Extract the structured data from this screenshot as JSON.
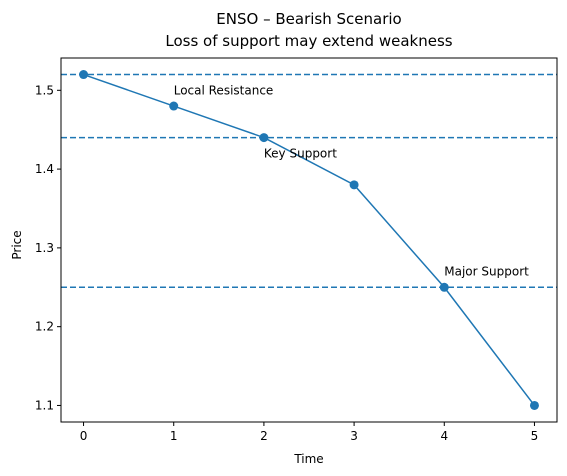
{
  "chart_data": {
    "type": "line",
    "title": "ENSO – Bearish Scenario",
    "subtitle": "Loss of support may extend weakness",
    "xlabel": "Time",
    "ylabel": "Price",
    "xlim": [
      -0.25,
      5.25
    ],
    "ylim": [
      1.079,
      1.541
    ],
    "x_ticks": [
      0,
      1,
      2,
      3,
      4,
      5
    ],
    "y_ticks": [
      1.1,
      1.2,
      1.3,
      1.4,
      1.5
    ],
    "x_tick_labels": [
      "0",
      "1",
      "2",
      "3",
      "4",
      "5"
    ],
    "y_tick_labels": [
      "1.1",
      "1.2",
      "1.3",
      "1.4",
      "1.5"
    ],
    "grid": false,
    "series": [
      {
        "x": [
          0,
          1,
          2,
          3,
          4,
          5
        ],
        "values": [
          1.52,
          1.48,
          1.44,
          1.38,
          1.25,
          1.1
        ],
        "color": "#1f77b4",
        "marker": "circle"
      }
    ],
    "hlines": [
      {
        "y": 1.52,
        "style": "dashed",
        "color": "#1f77b4"
      },
      {
        "y": 1.44,
        "style": "dashed",
        "color": "#1f77b4"
      },
      {
        "y": 1.25,
        "style": "dashed",
        "color": "#1f77b4"
      }
    ],
    "annotations": [
      {
        "text": "Local Resistance",
        "x": 1,
        "y": 1.5
      },
      {
        "text": "Key Support",
        "x": 2,
        "y": 1.42
      },
      {
        "text": "Major Support",
        "x": 4,
        "y": 1.27
      }
    ]
  }
}
